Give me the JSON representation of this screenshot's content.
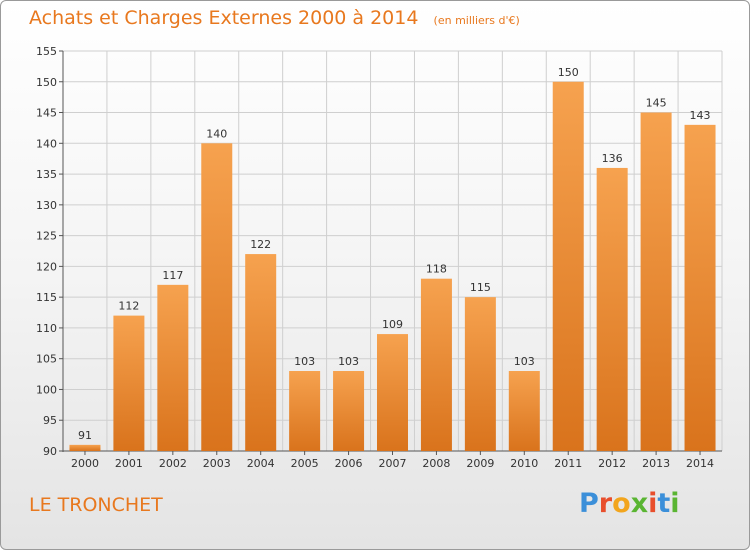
{
  "title": "Achats et Charges Externes 2000 à 2014",
  "unit": "(en milliers d'€)",
  "location": "LE TRONCHET",
  "brand": "Proxiti",
  "colors": {
    "title": "#e8781e",
    "bar_light": "#f6a24f",
    "bar_dark": "#d9731c",
    "grid": "#cfcfcf",
    "brand_letters": [
      "#3b8fd9",
      "#e84e2c",
      "#f2a51d",
      "#5ab532",
      "#e84e2c",
      "#3b8fd9",
      "#5ab532"
    ]
  },
  "chart_data": {
    "type": "bar",
    "title": "Achats et Charges Externes 2000 à 2014",
    "xlabel": "",
    "ylabel": "(en milliers d'€)",
    "ylim": [
      90,
      155
    ],
    "yticks": [
      90,
      95,
      100,
      105,
      110,
      115,
      120,
      125,
      130,
      135,
      140,
      145,
      150,
      155
    ],
    "grid": true,
    "categories": [
      "2000",
      "2001",
      "2002",
      "2003",
      "2004",
      "2005",
      "2006",
      "2007",
      "2008",
      "2009",
      "2010",
      "2011",
      "2012",
      "2013",
      "2014"
    ],
    "values": [
      91,
      112,
      117,
      140,
      122,
      103,
      103,
      109,
      118,
      115,
      103,
      150,
      136,
      145,
      143
    ]
  }
}
